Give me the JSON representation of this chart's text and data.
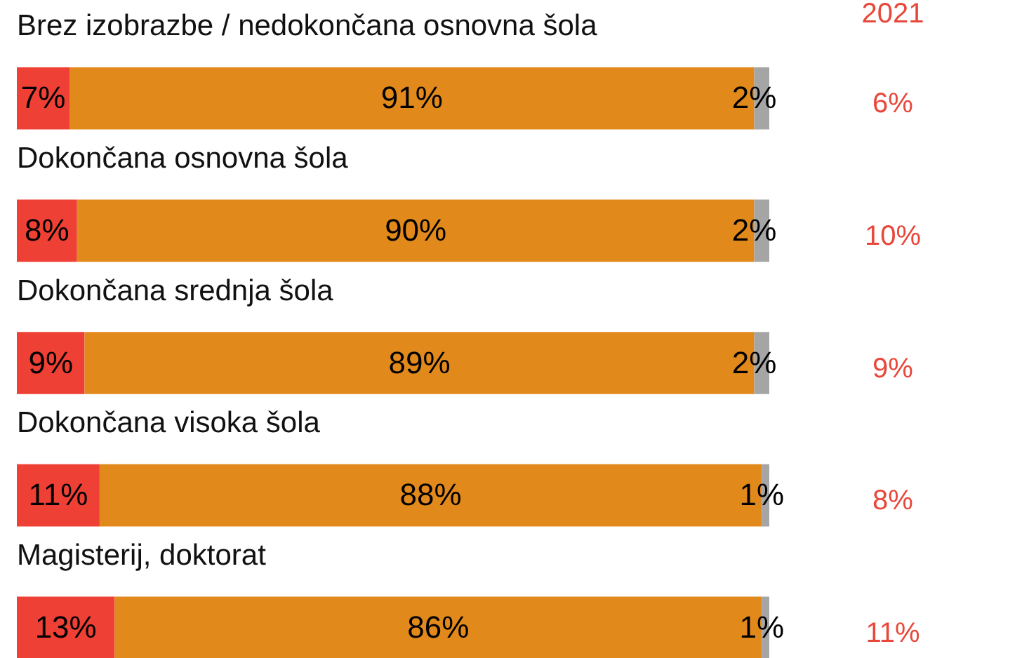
{
  "chart_data": {
    "type": "bar",
    "orientation": "horizontal",
    "stacked": true,
    "categories": [
      "Brez izobrazbe / nedokončana osnovna šola",
      "Dokončana osnovna šola",
      "Dokončana srednja šola",
      "Dokončana visoka šola",
      "Magisterij, doktorat"
    ],
    "series": [
      {
        "color": "#ee4035",
        "values": [
          7,
          8,
          9,
          11,
          13
        ],
        "value_labels": [
          "7%",
          "8%",
          "9%",
          "11%",
          "13%"
        ]
      },
      {
        "color": "#e2891c",
        "values": [
          91,
          90,
          89,
          88,
          86
        ],
        "value_labels": [
          "91%",
          "90%",
          "89%",
          "88%",
          "86%"
        ]
      },
      {
        "color": "#a5a5a5",
        "values": [
          2,
          2,
          2,
          1,
          1
        ],
        "value_labels": [
          "2%",
          "2%",
          "2%",
          "1%",
          "1%"
        ]
      }
    ],
    "annotations": [
      "2021",
      "6%",
      "10%",
      "9%",
      "8%",
      "11%"
    ]
  }
}
